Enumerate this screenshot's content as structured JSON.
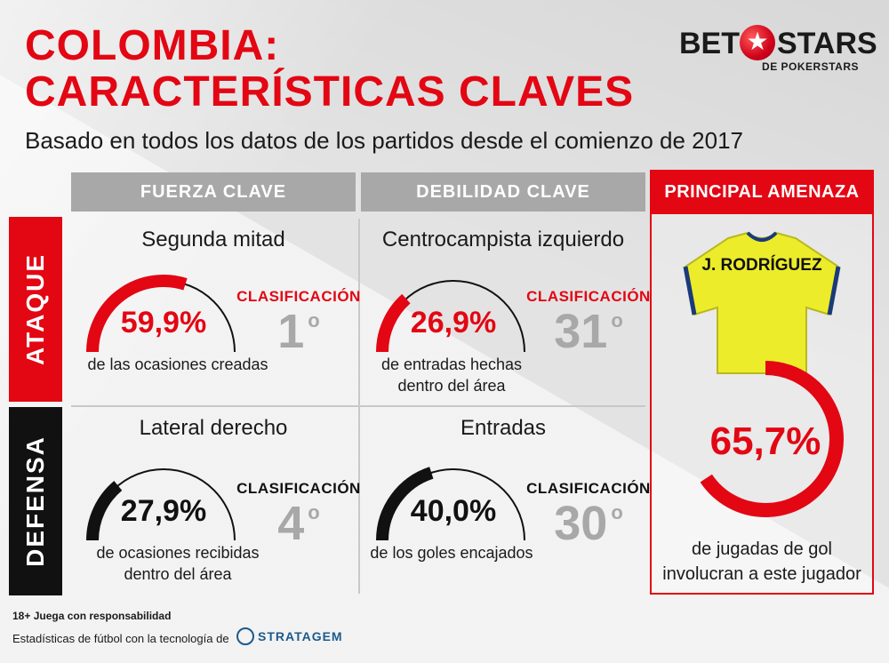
{
  "header": {
    "title_line1": "COLOMBIA:",
    "title_line2": "CARACTERÍSTICAS CLAVES",
    "subtitle": "Basado en todos los datos de los partidos desde el comienzo de 2017"
  },
  "logo": {
    "left": "BET",
    "right": "STARS",
    "sub": "DE POKERSTARS",
    "star": "★"
  },
  "columns": {
    "strength": "FUERZA CLAVE",
    "weakness": "DEBILIDAD CLAVE",
    "threat": "PRINCIPAL AMENAZA"
  },
  "rows": {
    "attack": "ATAQUE",
    "defense": "DEFENSA"
  },
  "cells": {
    "attack_strength": {
      "title": "Segunda mitad",
      "pct": "59,9%",
      "pct_value": 59.9,
      "desc_line1": "de las ocasiones creadas",
      "desc_line2": "",
      "rank_label": "CLASIFICACIÓN",
      "rank": "1",
      "rank_suffix": "o"
    },
    "attack_weakness": {
      "title": "Centrocampista izquierdo",
      "pct": "26,9%",
      "pct_value": 26.9,
      "desc_line1": "de entradas hechas",
      "desc_line2": "dentro del área",
      "rank_label": "CLASIFICACIÓN",
      "rank": "31",
      "rank_suffix": "o"
    },
    "defense_strength": {
      "title": "Lateral derecho",
      "pct": "27,9%",
      "pct_value": 27.9,
      "desc_line1": "de ocasiones recibidas",
      "desc_line2": "dentro del área",
      "rank_label": "CLASIFICACIÓN",
      "rank": "4",
      "rank_suffix": "o"
    },
    "defense_weakness": {
      "title": "Entradas",
      "pct": "40,0%",
      "pct_value": 40.0,
      "desc_line1": "de los goles encajados",
      "desc_line2": "",
      "rank_label": "CLASIFICACIÓN",
      "rank": "30",
      "rank_suffix": "o"
    }
  },
  "threat": {
    "player": "J. RODRÍGUEZ",
    "pct": "65,7%",
    "pct_value": 65.7,
    "desc_line1": "de jugadas de gol",
    "desc_line2": "involucran a este jugador"
  },
  "footer": {
    "responsible": "18+ Juega con responsabilidad",
    "powered": "Estadísticas de fútbol con la tecnología de",
    "brand": "STRATAGEM"
  },
  "colors": {
    "red": "#e30613",
    "dark": "#111111",
    "grey": "#a8a8a8",
    "jersey": "#ecec2a"
  }
}
